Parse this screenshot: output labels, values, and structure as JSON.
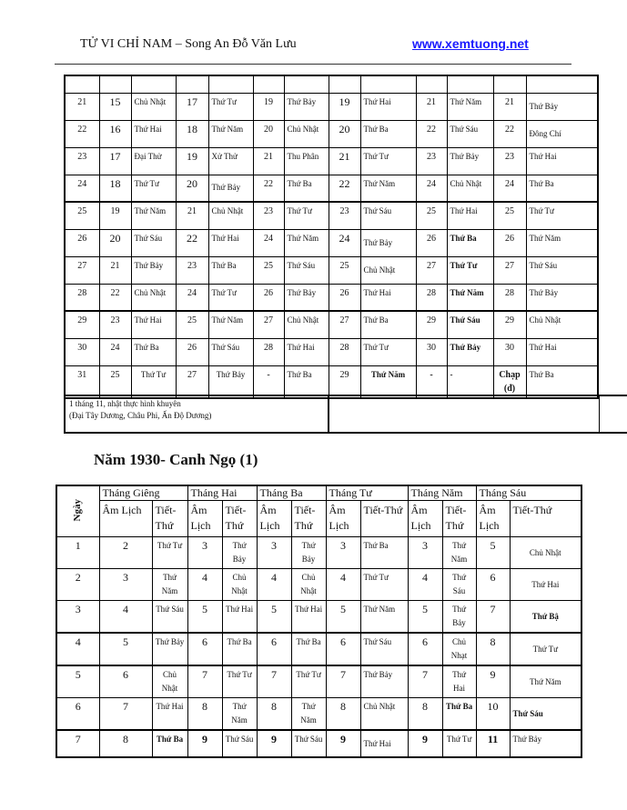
{
  "header": {
    "title": "TỬ VI CHỈ NAM – Song An Đỗ Văn Lưu",
    "link": "www.xemtuong.net"
  },
  "top_table": {
    "rows": [
      [
        "21",
        "15",
        "Chủ Nhật",
        "17",
        "Thứ Tư",
        "19",
        "Thứ Bảy",
        "19",
        "Thứ Hai",
        "21",
        "Thứ Năm",
        "21",
        "Thứ Bảy"
      ],
      [
        "22",
        "16",
        "Thứ Hai",
        "18",
        "Thứ Năm",
        "20",
        "Chủ Nhật",
        "20",
        "Thứ Ba",
        "22",
        "Thứ Sáu",
        "22",
        "Đông Chí"
      ],
      [
        "23",
        "17",
        "Đại Thử",
        "19",
        "Xử Thử",
        "21",
        "Thu Phân",
        "21",
        "Thứ Tư",
        "23",
        "Thứ Bảy",
        "23",
        "Thứ Hai"
      ],
      [
        "24",
        "18",
        "Thứ Tư",
        "20",
        "Thứ Bảy",
        "22",
        "Thứ Ba",
        "22",
        "Thứ Năm",
        "24",
        "Chủ Nhật",
        "24",
        "Thứ Ba"
      ],
      [
        "25",
        "19",
        "Thứ Năm",
        "21",
        "Chủ Nhật",
        "23",
        "Thứ Tư",
        "23",
        "Thứ Sáu",
        "25",
        "Thứ Hai",
        "25",
        "Thứ Tư"
      ],
      [
        "26",
        "20",
        "Thứ Sáu",
        "22",
        "Thứ Hai",
        "24",
        "Thứ Năm",
        "24",
        "Thứ Bảy",
        "26",
        "Thứ Ba",
        "26",
        "Thứ Năm"
      ],
      [
        "27",
        "21",
        "Thứ Bảy",
        "23",
        "Thứ Ba",
        "25",
        "Thứ Sáu",
        "25",
        "Chủ Nhật",
        "27",
        "Thứ Tư",
        "27",
        "Thứ Sáu"
      ],
      [
        "28",
        "22",
        "Chủ Nhật",
        "24",
        "Thứ Tư",
        "26",
        "Thứ Bảy",
        "26",
        "Thứ Hai",
        "28",
        "Thứ Năm",
        "28",
        "Thứ Bảy"
      ],
      [
        "29",
        "23",
        "Thứ Hai",
        "25",
        "Thứ Năm",
        "27",
        "Chủ Nhật",
        "27",
        "Thứ Ba",
        "29",
        "Thứ Sáu",
        "29",
        "Chủ Nhật"
      ],
      [
        "30",
        "24",
        "Thứ Ba",
        "26",
        "Thứ Sáu",
        "28",
        "Thứ Hai",
        "28",
        "Thứ Tư",
        "30",
        "Thứ Bảy",
        "30",
        "Thứ Hai"
      ],
      [
        "31",
        "25",
        "Thứ Tư",
        "27",
        "Thứ Bảy",
        "-",
        "Thứ Ba",
        "29",
        "Thứ Năm",
        "-",
        "-",
        "Chạp (đ)",
        "Thứ Ba"
      ]
    ],
    "footer_note_line1": "1 tháng 11, nhật thực hình khuyên",
    "footer_note_line2": "(Đại Tây Dương, Châu Phi, Ấn Độ Dương)"
  },
  "section_title": "Năm 1930- Canh Ngọ (1)",
  "bottom_table": {
    "day_header": "Ngày",
    "months": [
      "Tháng Giêng",
      "Tháng Hai",
      "Tháng Ba",
      "Tháng Tư",
      "Tháng Năm",
      "Tháng Sáu"
    ],
    "sub_headers": [
      "Âm Lịch",
      "Tiết-Thứ",
      "Âm Lịch",
      "Tiết-Thứ",
      "Âm Lịch",
      "Tiết-Thứ",
      "Âm Lịch",
      "Tiết-Thứ",
      "Âm Lịch",
      "Tiết-Thứ",
      "Âm Lịch",
      "Tiết-Thứ"
    ],
    "rows": [
      [
        "1",
        "2",
        "Thứ Tư",
        "3",
        "Thứ Bảy",
        "3",
        "Thứ Bảy",
        "3",
        "Thứ Ba",
        "3",
        "Thứ Năm",
        "5",
        "Chủ Nhật"
      ],
      [
        "2",
        "3",
        "Thứ Năm",
        "4",
        "Chủ Nhật",
        "4",
        "Chủ Nhật",
        "4",
        "Thứ Tư",
        "4",
        "Thứ Sáu",
        "6",
        "Thứ Hai"
      ],
      [
        "3",
        "4",
        "Thứ Sáu",
        "5",
        "Thứ Hai",
        "5",
        "Thứ Hai",
        "5",
        "Thứ Năm",
        "5",
        "Thứ Bảy",
        "7",
        "Thứ Bậ"
      ],
      [
        "4",
        "5",
        "Thứ Bảy",
        "6",
        "Thứ Ba",
        "6",
        "Thứ Ba",
        "6",
        "Thứ Sáu",
        "6",
        "Chủ Nhạt",
        "8",
        "Thứ Tư"
      ],
      [
        "5",
        "6",
        "Chủ Nhật",
        "7",
        "Thứ Tư",
        "7",
        "Thứ Tư",
        "7",
        "Thứ Bảy",
        "7",
        "Thứ Hai",
        "9",
        "Thứ Năm"
      ],
      [
        "6",
        "7",
        "Thứ Hai",
        "8",
        "Thứ Năm",
        "8",
        "Thứ Năm",
        "8",
        "Chủ Nhật",
        "8",
        "Thứ Ba",
        "10",
        "Thứ Sáu"
      ],
      [
        "7",
        "8",
        "Thứ Ba",
        "9",
        "Thứ Sáu",
        "9",
        "Thứ Sáu",
        "9",
        "Thứ Hai",
        "9",
        "Thứ Tư",
        "11",
        "Thứ Bảy"
      ]
    ]
  }
}
